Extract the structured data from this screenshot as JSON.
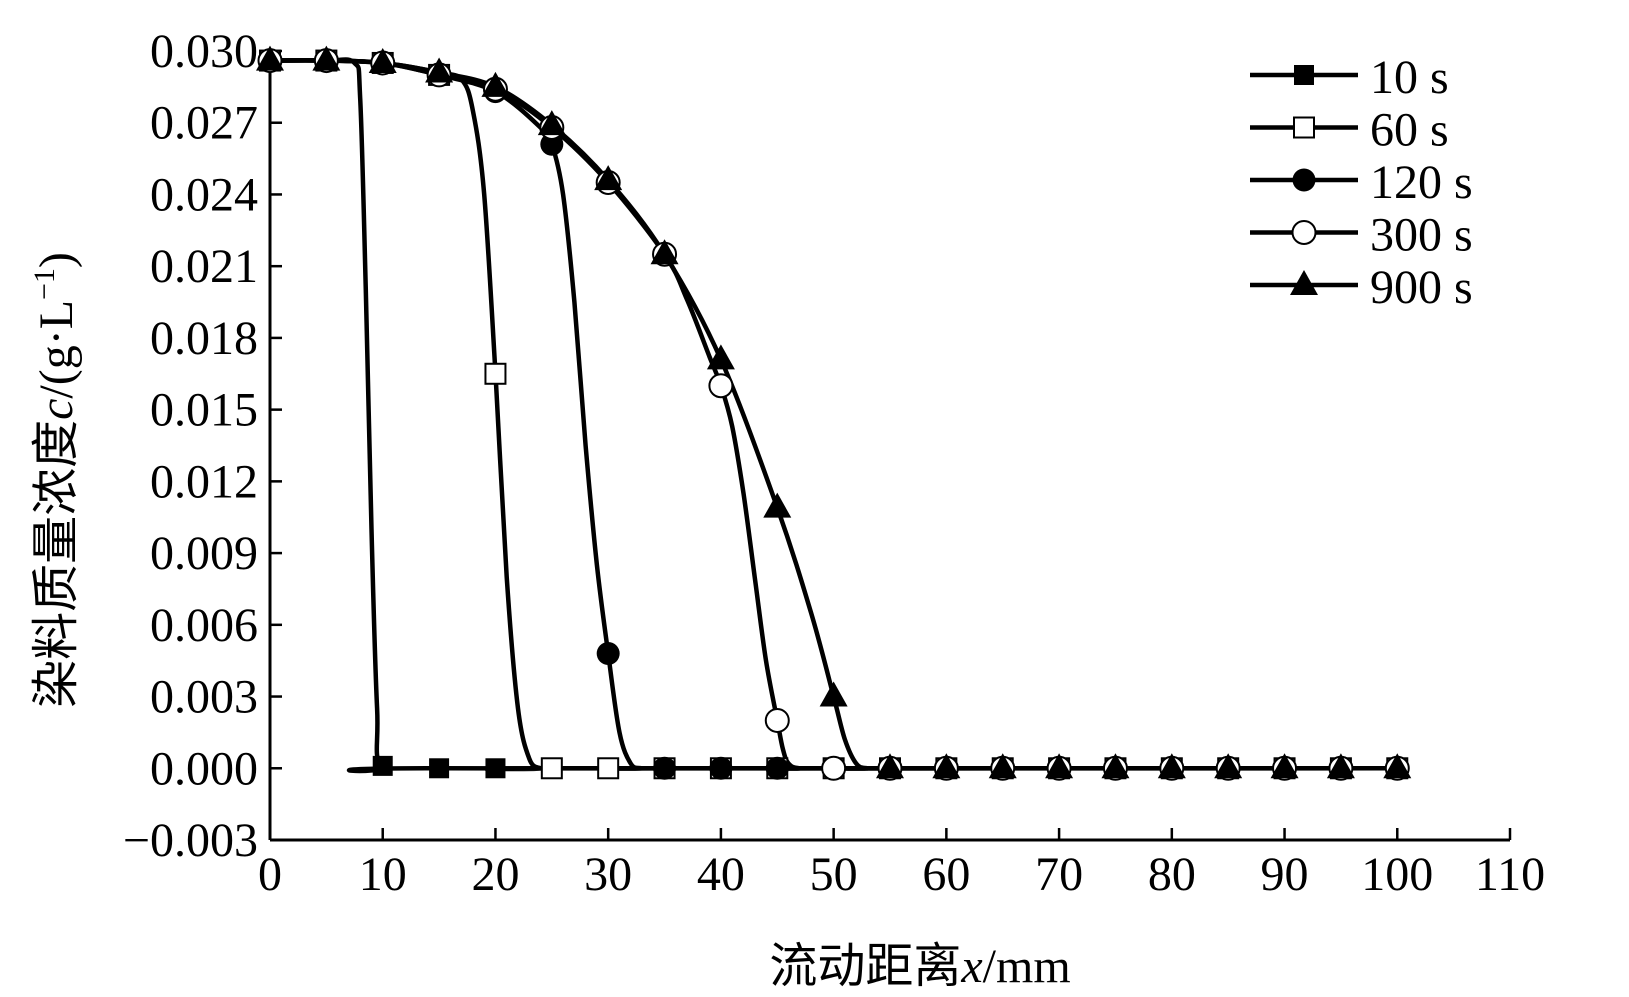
{
  "chart_data": {
    "type": "line",
    "xlabel_prefix": "流动距离",
    "xlabel_var": "x",
    "xlabel_unit": "/mm",
    "ylabel_prefix": "染料质量浓度",
    "ylabel_var": "c",
    "ylabel_unit_base": "/(g·L",
    "ylabel_unit_exp": "−1",
    "ylabel_unit_close": ")",
    "xlim": [
      0,
      110
    ],
    "ylim": [
      -0.003,
      0.03
    ],
    "xticks": [
      0,
      10,
      20,
      30,
      40,
      50,
      60,
      70,
      80,
      90,
      100,
      110
    ],
    "xtick_labels": [
      "0",
      "10",
      "20",
      "30",
      "40",
      "50",
      "60",
      "70",
      "80",
      "90",
      "100",
      "110"
    ],
    "yticks": [
      0.03,
      0.027,
      0.024,
      0.021,
      0.018,
      0.015,
      0.012,
      0.009,
      0.006,
      0.003,
      0.0,
      -0.003
    ],
    "ytick_labels": [
      "0.030",
      "0.027",
      "0.024",
      "0.021",
      "0.018",
      "0.015",
      "0.012",
      "0.009",
      "0.006",
      "0.003",
      "0.000",
      "−0.003"
    ],
    "grid": false,
    "legend_position": "top-right",
    "series": [
      {
        "name": "10 s",
        "marker": "square-filled",
        "x": [
          0,
          5,
          10,
          15,
          20,
          25,
          30,
          35,
          40,
          45,
          50,
          55,
          60,
          65,
          70,
          75,
          80,
          85,
          90,
          95,
          100
        ],
        "y": [
          0.0296,
          0.0296,
          0.0001,
          0.0,
          0.0,
          0.0,
          0.0,
          0.0,
          0.0,
          0.0,
          0.0,
          0.0,
          0.0,
          0.0,
          0.0,
          0.0,
          0.0,
          0.0,
          0.0,
          0.0,
          0.0
        ],
        "curve_x": [
          0,
          5,
          7.5,
          8,
          8.5,
          9,
          9.5,
          10,
          15,
          100
        ],
        "curve_y": [
          0.0296,
          0.0296,
          0.0295,
          0.028,
          0.02,
          0.01,
          0.0025,
          0.0001,
          0.0,
          0.0
        ]
      },
      {
        "name": "60 s",
        "marker": "square-open",
        "x": [
          0,
          5,
          10,
          15,
          20,
          25,
          30,
          35,
          40,
          45,
          50,
          55,
          60,
          65,
          70,
          75,
          80,
          85,
          90,
          95,
          100
        ],
        "y": [
          0.0296,
          0.0296,
          0.0295,
          0.029,
          0.0165,
          0.0,
          0.0,
          0.0,
          0.0,
          0.0,
          0.0,
          0.0,
          0.0,
          0.0,
          0.0,
          0.0,
          0.0,
          0.0,
          0.0,
          0.0,
          0.0
        ],
        "curve_x": [
          0,
          5,
          10,
          15,
          17,
          18,
          19,
          20,
          21,
          22,
          23,
          24,
          25,
          100
        ],
        "curve_y": [
          0.0296,
          0.0296,
          0.0295,
          0.0291,
          0.0288,
          0.0275,
          0.024,
          0.0165,
          0.008,
          0.0025,
          0.0004,
          0.0,
          0.0,
          0.0
        ]
      },
      {
        "name": "120 s",
        "marker": "circle-filled",
        "x": [
          0,
          5,
          10,
          15,
          20,
          25,
          30,
          35,
          40,
          45,
          50,
          55,
          60,
          65,
          70,
          75,
          80,
          85,
          90,
          95,
          100
        ],
        "y": [
          0.0296,
          0.0296,
          0.0295,
          0.029,
          0.0283,
          0.0261,
          0.0048,
          0.0,
          0.0,
          0.0,
          0.0,
          0.0,
          0.0,
          0.0,
          0.0,
          0.0,
          0.0,
          0.0,
          0.0,
          0.0,
          0.0
        ],
        "curve_x": [
          0,
          5,
          10,
          15,
          20,
          24,
          25,
          26,
          27,
          28,
          29,
          30,
          31,
          32,
          33,
          35,
          100
        ],
        "curve_y": [
          0.0296,
          0.0296,
          0.0295,
          0.029,
          0.0283,
          0.0268,
          0.0261,
          0.024,
          0.0195,
          0.0135,
          0.0085,
          0.0048,
          0.0015,
          0.0002,
          0.0,
          0.0,
          0.0
        ]
      },
      {
        "name": "300 s",
        "marker": "circle-open",
        "x": [
          0,
          5,
          10,
          15,
          20,
          25,
          30,
          35,
          40,
          45,
          50,
          55,
          60,
          65,
          70,
          75,
          80,
          85,
          90,
          95,
          100
        ],
        "y": [
          0.0296,
          0.0296,
          0.0295,
          0.029,
          0.0284,
          0.0268,
          0.0245,
          0.0215,
          0.016,
          0.002,
          0.0,
          0.0,
          0.0,
          0.0,
          0.0,
          0.0,
          0.0,
          0.0,
          0.0,
          0.0,
          0.0
        ],
        "curve_x": [
          0,
          5,
          10,
          15,
          20,
          25,
          30,
          35,
          37,
          39,
          40,
          41,
          42,
          43,
          44,
          45,
          45.5,
          46,
          47,
          50,
          100
        ],
        "curve_y": [
          0.0296,
          0.0296,
          0.0295,
          0.029,
          0.0284,
          0.0268,
          0.0245,
          0.0215,
          0.0196,
          0.0172,
          0.016,
          0.0143,
          0.0115,
          0.008,
          0.0045,
          0.002,
          0.0008,
          0.0002,
          0.0,
          0.0,
          0.0
        ]
      },
      {
        "name": "900 s",
        "marker": "triangle-filled",
        "x": [
          0,
          5,
          10,
          15,
          20,
          25,
          30,
          35,
          40,
          45,
          50,
          55,
          60,
          65,
          70,
          75,
          80,
          85,
          90,
          95,
          100
        ],
        "y": [
          0.0296,
          0.0296,
          0.0295,
          0.0291,
          0.0285,
          0.0269,
          0.0246,
          0.0215,
          0.0171,
          0.0109,
          0.003,
          0.0,
          0.0,
          0.0,
          0.0,
          0.0,
          0.0,
          0.0,
          0.0,
          0.0,
          0.0
        ],
        "curve_x": [
          0,
          5,
          10,
          15,
          20,
          25,
          30,
          35,
          40,
          45,
          48,
          50,
          51,
          52,
          53,
          55,
          100
        ],
        "curve_y": [
          0.0296,
          0.0296,
          0.0295,
          0.0291,
          0.0285,
          0.0269,
          0.0246,
          0.0215,
          0.0171,
          0.0109,
          0.0065,
          0.003,
          0.0012,
          0.0002,
          0.0,
          0.0,
          0.0
        ]
      }
    ]
  }
}
